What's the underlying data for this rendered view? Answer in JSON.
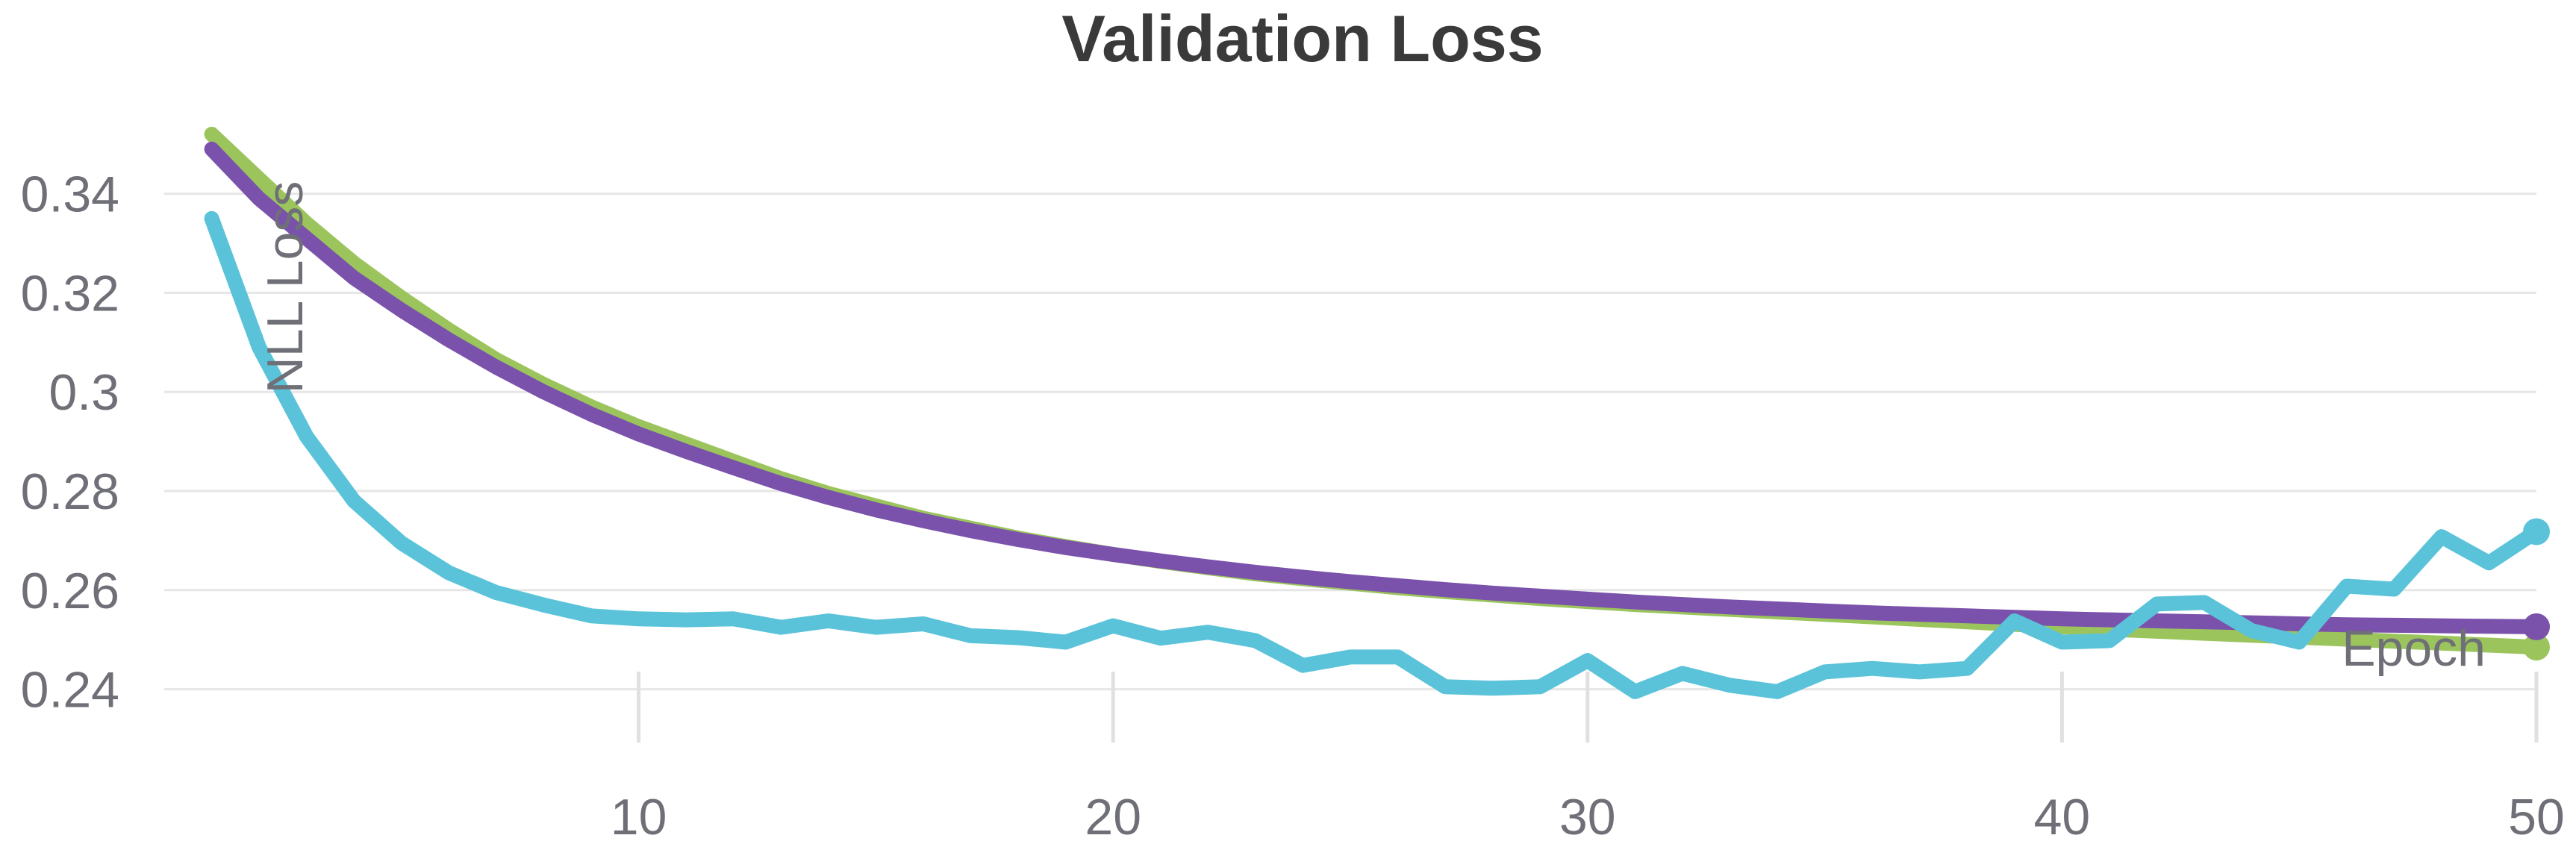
{
  "chart_data": {
    "type": "line",
    "title": "Validation Loss",
    "xlabel": "Epoch",
    "ylabel": "NLL Loss",
    "xlim": [
      0,
      50
    ],
    "ylim": [
      0.23,
      0.355
    ],
    "x_ticks": [
      10,
      20,
      30,
      40,
      50
    ],
    "y_ticks": [
      0.24,
      0.26,
      0.28,
      0.3,
      0.32,
      0.34
    ],
    "y_tick_labels": [
      "0.24",
      "0.26",
      "0.28",
      "0.3",
      "0.32",
      "0.34"
    ],
    "grid": "horizontal",
    "x": [
      1,
      2,
      3,
      4,
      5,
      6,
      7,
      8,
      9,
      10,
      11,
      12,
      13,
      14,
      15,
      16,
      17,
      18,
      19,
      20,
      21,
      22,
      23,
      24,
      25,
      26,
      27,
      28,
      29,
      30,
      31,
      32,
      33,
      34,
      35,
      36,
      37,
      38,
      39,
      40,
      41,
      42,
      43,
      44,
      45,
      46,
      47,
      48,
      49,
      50
    ],
    "series": [
      {
        "color": "#9bc55c",
        "values": [
          0.352,
          0.343,
          0.334,
          0.326,
          0.319,
          0.3125,
          0.3065,
          0.3015,
          0.297,
          0.293,
          0.2895,
          0.286,
          0.2825,
          0.2795,
          0.277,
          0.2745,
          0.2725,
          0.2705,
          0.2688,
          0.2672,
          0.2658,
          0.2645,
          0.2633,
          0.2623,
          0.2614,
          0.2605,
          0.2597,
          0.259,
          0.2583,
          0.2577,
          0.2571,
          0.2566,
          0.2561,
          0.2556,
          0.2551,
          0.2546,
          0.2541,
          0.2536,
          0.2531,
          0.2526,
          0.2521,
          0.2517,
          0.2513,
          0.2509,
          0.2505,
          0.2501,
          0.2497,
          0.2493,
          0.2489,
          0.2485
        ]
      },
      {
        "color": "#7b52ab",
        "values": [
          0.349,
          0.339,
          0.331,
          0.323,
          0.3165,
          0.3105,
          0.305,
          0.3,
          0.2955,
          0.2915,
          0.288,
          0.2847,
          0.2815,
          0.2787,
          0.2762,
          0.274,
          0.272,
          0.2702,
          0.2686,
          0.2672,
          0.2659,
          0.2647,
          0.2636,
          0.2626,
          0.2617,
          0.2609,
          0.2601,
          0.2594,
          0.2588,
          0.2582,
          0.2576,
          0.2571,
          0.2566,
          0.2562,
          0.2558,
          0.2554,
          0.2551,
          0.2548,
          0.2545,
          0.2542,
          0.254,
          0.2538,
          0.2536,
          0.2534,
          0.2532,
          0.253,
          0.2529,
          0.2528,
          0.2527,
          0.2526
        ]
      },
      {
        "color": "#5bc3d9",
        "values": [
          0.335,
          0.309,
          0.291,
          0.278,
          0.2695,
          0.2635,
          0.2595,
          0.257,
          0.2548,
          0.2542,
          0.254,
          0.2542,
          0.2525,
          0.2538,
          0.2525,
          0.2532,
          0.2508,
          0.2504,
          0.2495,
          0.2528,
          0.2503,
          0.2515,
          0.2498,
          0.2448,
          0.2465,
          0.2465,
          0.2405,
          0.2402,
          0.2405,
          0.2458,
          0.2395,
          0.2432,
          0.2408,
          0.2395,
          0.2435,
          0.2442,
          0.2435,
          0.2442,
          0.2538,
          0.2495,
          0.2498,
          0.2572,
          0.2575,
          0.2518,
          0.2495,
          0.2608,
          0.2602,
          0.2708,
          0.2655,
          0.2718
        ]
      }
    ]
  }
}
